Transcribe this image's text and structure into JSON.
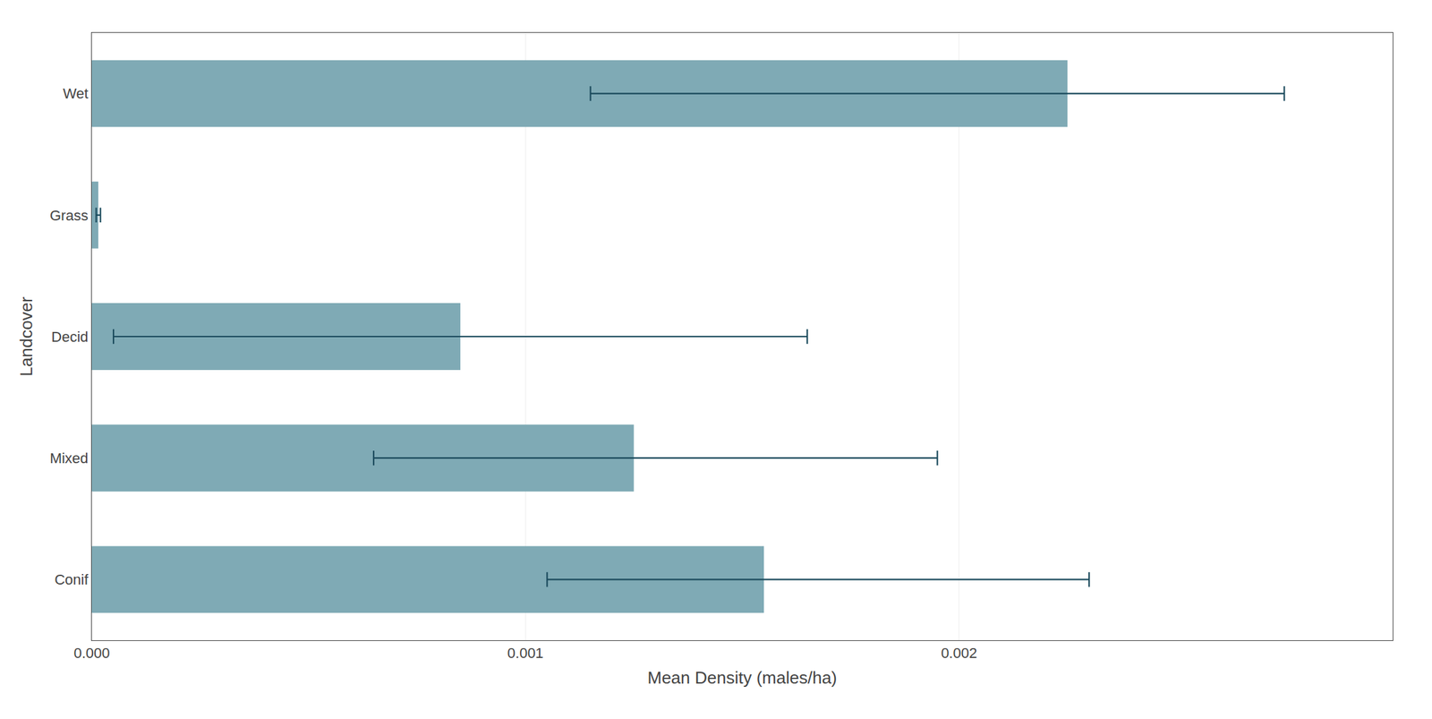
{
  "chart_data": {
    "type": "bar",
    "orientation": "horizontal",
    "categories": [
      "Wet",
      "Grass",
      "Decid",
      "Mixed",
      "Conif"
    ],
    "values": [
      0.00225,
      1.5e-05,
      0.00085,
      0.00125,
      0.00155
    ],
    "error_bars": {
      "low": [
        0.00115,
        1e-05,
        5e-05,
        0.00065,
        0.00105
      ],
      "high": [
        0.00275,
        2e-05,
        0.00165,
        0.00195,
        0.0023
      ],
      "color": "#1A4A5C"
    },
    "color": "#7FAAB5",
    "xlabel": "Mean Density (males/ha)",
    "ylabel": "Landcover",
    "xlim": [
      0,
      0.003
    ],
    "xticks": [
      {
        "value": 0,
        "label": "0.000"
      },
      {
        "value": 0.001,
        "label": "0.001"
      },
      {
        "value": 0.002,
        "label": "0.002"
      }
    ],
    "grid": true
  }
}
